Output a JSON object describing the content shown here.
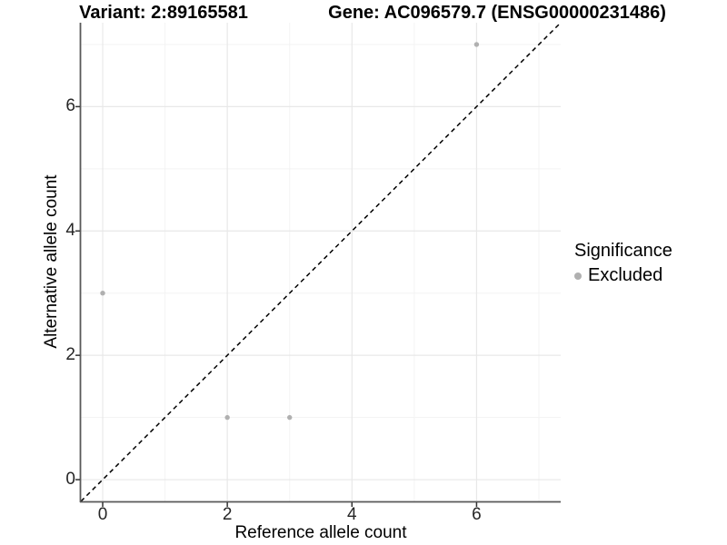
{
  "chart_data": {
    "type": "scatter",
    "titles": {
      "left": "Variant: 2:89165581",
      "right": "Gene: AC096579.7 (ENSG00000231486)"
    },
    "xlabel": "Reference allele count",
    "ylabel": "Alternative allele count",
    "xlim": [
      -0.35,
      7.35
    ],
    "ylim": [
      -0.35,
      7.35
    ],
    "x_major_ticks": [
      0,
      2,
      4,
      6
    ],
    "y_major_ticks": [
      0,
      2,
      4,
      6
    ],
    "x_minor_ticks": [
      1,
      3,
      5,
      7
    ],
    "y_minor_ticks": [
      1,
      3,
      5,
      7
    ],
    "grid": true,
    "identity_line": {
      "equation": "y = x",
      "style": "dashed",
      "color": "#000000"
    },
    "series": [
      {
        "name": "Excluded",
        "color": "#b0b0b0",
        "points": [
          {
            "x": 0,
            "y": 3
          },
          {
            "x": 2,
            "y": 1
          },
          {
            "x": 3,
            "y": 1
          },
          {
            "x": 6,
            "y": 7
          }
        ]
      }
    ],
    "legend": {
      "title": "Significance",
      "position": "right",
      "entries": [
        {
          "label": "Excluded",
          "color": "#b0b0b0"
        }
      ]
    },
    "colors": {
      "background": "#ffffff",
      "grid_major": "#e8e8e8",
      "grid_minor": "#f3f3f3",
      "axis_line": "#595959",
      "tick_mark": "#333333",
      "tick_text": "#262626",
      "text": "#000000",
      "point": "#b0b0b0"
    }
  }
}
